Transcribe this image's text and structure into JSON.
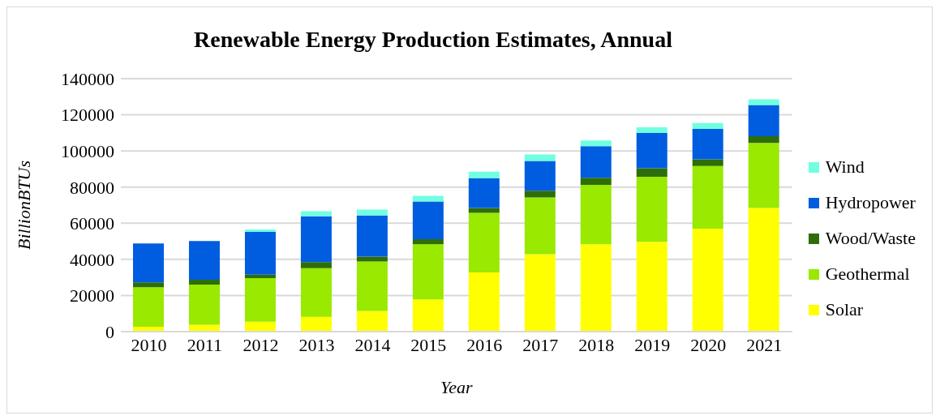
{
  "chart_data": {
    "type": "bar",
    "title": "Renewable Energy Production Estimates, Annual",
    "xlabel": "Year",
    "ylabel": "BillionBTUs",
    "categories": [
      "2010",
      "2011",
      "2012",
      "2013",
      "2014",
      "2015",
      "2016",
      "2017",
      "2018",
      "2019",
      "2020",
      "2021"
    ],
    "stacked": true,
    "ylim": [
      0,
      140000
    ],
    "yticks": [
      0,
      20000,
      40000,
      60000,
      80000,
      100000,
      120000,
      140000
    ],
    "grid": "y",
    "legend": "right",
    "series": [
      {
        "name": "Solar",
        "color": "#ffff00",
        "values": [
          2700,
          3800,
          5500,
          8200,
          11400,
          17800,
          32800,
          42900,
          48300,
          49700,
          57000,
          68400
        ]
      },
      {
        "name": "Geothermal",
        "color": "#99e900",
        "values": [
          21900,
          22200,
          24100,
          26900,
          27400,
          30500,
          32900,
          31400,
          32900,
          36000,
          34700,
          36000
        ]
      },
      {
        "name": "Wood/Waste",
        "color": "#2e6e08",
        "values": [
          2700,
          2700,
          1900,
          3400,
          2700,
          2800,
          2700,
          3700,
          3900,
          4700,
          3600,
          3700
        ]
      },
      {
        "name": "Hydropower",
        "color": "#005de0",
        "values": [
          21500,
          21500,
          23700,
          25300,
          22800,
          20900,
          16400,
          16400,
          17500,
          19500,
          16900,
          17300
        ]
      },
      {
        "name": "Wind",
        "color": "#70ffe0",
        "values": [
          0,
          0,
          1300,
          2800,
          3200,
          3200,
          3700,
          3600,
          3200,
          3200,
          3200,
          3200
        ]
      }
    ]
  }
}
